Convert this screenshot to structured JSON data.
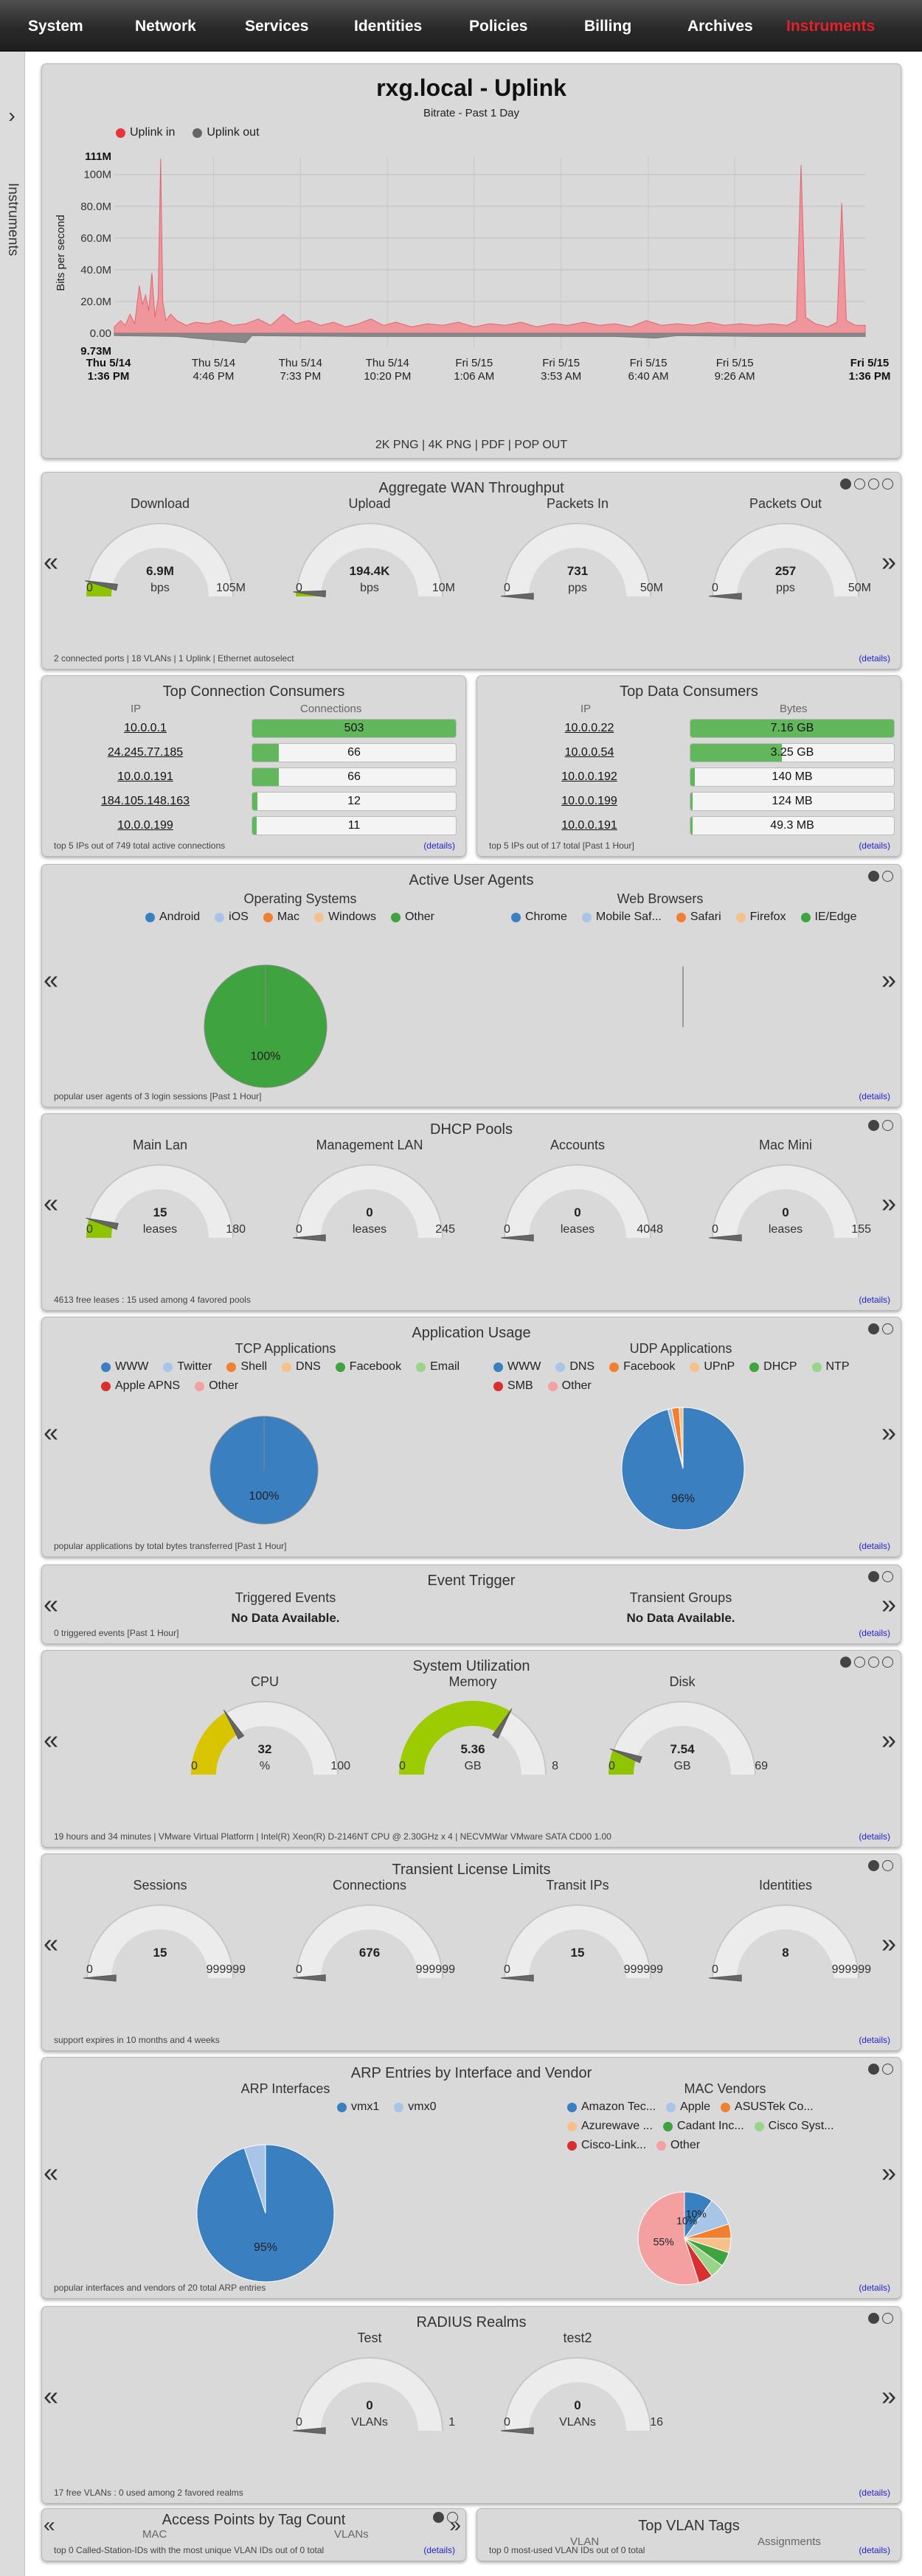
{
  "nav": {
    "items": [
      "System",
      "Network",
      "Services",
      "Identities",
      "Policies",
      "Billing",
      "Archives",
      "Instruments"
    ],
    "active": "Instruments"
  },
  "sidebar": {
    "label": "Instruments",
    "toggle": "›"
  },
  "uplink": {
    "title": "rxg.local - Uplink",
    "subtitle": "Bitrate - Past 1 Day",
    "legend": [
      {
        "name": "Uplink in",
        "color": "#e8343e"
      },
      {
        "name": "Uplink out",
        "color": "#666666"
      }
    ],
    "export": "2K PNG | 4K PNG | PDF | POP OUT",
    "chart_data": {
      "type": "area",
      "ylabel": "Bits per second",
      "max_label": "111M",
      "min_label": "9.73M",
      "yticks": [
        "100M",
        "80.0M",
        "60.0M",
        "40.0M",
        "20.0M",
        "0.00"
      ],
      "ytick_values": [
        100,
        80,
        60,
        40,
        20,
        0
      ],
      "ylim": [
        -9.73,
        111
      ],
      "unit": "M",
      "x_start_label": [
        "Thu 5/14",
        "1:36 PM"
      ],
      "x_end_label": [
        "Fri 5/15",
        "1:36 PM"
      ],
      "xticks": [
        [
          "Thu 5/14",
          "4:46 PM"
        ],
        [
          "Thu 5/14",
          "7:33 PM"
        ],
        [
          "Thu 5/14",
          "10:20 PM"
        ],
        [
          "Fri 5/15",
          "1:06 AM"
        ],
        [
          "Fri 5/15",
          "3:53 AM"
        ],
        [
          "Fri 5/15",
          "6:40 AM"
        ],
        [
          "Fri 5/15",
          "9:26 AM"
        ]
      ],
      "xtick_hours": [
        3.17,
        5.95,
        8.73,
        11.5,
        14.28,
        17.07,
        19.83
      ],
      "span_hours": 24,
      "series": [
        {
          "name": "Uplink in",
          "color": "#f0959b",
          "points": [
            [
              0,
              4
            ],
            [
              0.2,
              8
            ],
            [
              0.35,
              5
            ],
            [
              0.5,
              12
            ],
            [
              0.65,
              6
            ],
            [
              0.8,
              30
            ],
            [
              0.9,
              18
            ],
            [
              1.0,
              24
            ],
            [
              1.1,
              14
            ],
            [
              1.2,
              38
            ],
            [
              1.3,
              10
            ],
            [
              1.4,
              22
            ],
            [
              1.48,
              110
            ],
            [
              1.55,
              20
            ],
            [
              1.65,
              8
            ],
            [
              1.8,
              12
            ],
            [
              2,
              8
            ],
            [
              2.3,
              5
            ],
            [
              2.6,
              7
            ],
            [
              3,
              6
            ],
            [
              3.4,
              8
            ],
            [
              3.8,
              5
            ],
            [
              4.2,
              6
            ],
            [
              4.6,
              9
            ],
            [
              5,
              5
            ],
            [
              5.4,
              12
            ],
            [
              5.8,
              6
            ],
            [
              6.2,
              8
            ],
            [
              6.6,
              5
            ],
            [
              7,
              7
            ],
            [
              7.4,
              4
            ],
            [
              7.8,
              6
            ],
            [
              8.2,
              9
            ],
            [
              8.6,
              5
            ],
            [
              9,
              7
            ],
            [
              9.5,
              4
            ],
            [
              10,
              6
            ],
            [
              10.5,
              5
            ],
            [
              11,
              7
            ],
            [
              11.5,
              4
            ],
            [
              12,
              6
            ],
            [
              12.5,
              5
            ],
            [
              13,
              7
            ],
            [
              13.5,
              4
            ],
            [
              14,
              6
            ],
            [
              14.5,
              5
            ],
            [
              15,
              7
            ],
            [
              15.5,
              5
            ],
            [
              16,
              6
            ],
            [
              16.5,
              4
            ],
            [
              17,
              8
            ],
            [
              17.5,
              5
            ],
            [
              18,
              6
            ],
            [
              18.5,
              5
            ],
            [
              19,
              7
            ],
            [
              19.5,
              5
            ],
            [
              20,
              6
            ],
            [
              20.5,
              5
            ],
            [
              21,
              6
            ],
            [
              21.5,
              5
            ],
            [
              21.8,
              8
            ],
            [
              21.95,
              106
            ],
            [
              22.1,
              10
            ],
            [
              22.4,
              6
            ],
            [
              22.8,
              4
            ],
            [
              23.1,
              7
            ],
            [
              23.25,
              82
            ],
            [
              23.4,
              8
            ],
            [
              23.7,
              5
            ],
            [
              24,
              5
            ]
          ]
        },
        {
          "name": "Uplink out",
          "color": "#888888",
          "points": [
            [
              0,
              -1.5
            ],
            [
              2,
              -2
            ],
            [
              4.2,
              -6
            ],
            [
              4.4,
              -1.5
            ],
            [
              8,
              -2
            ],
            [
              12,
              -2
            ],
            [
              16,
              -2
            ],
            [
              17.3,
              -3
            ],
            [
              18,
              -1.5
            ],
            [
              20.6,
              -2
            ],
            [
              21,
              -2
            ],
            [
              22,
              -2
            ],
            [
              24,
              -2
            ]
          ]
        }
      ]
    }
  },
  "wan": {
    "title": "Aggregate WAN Throughput",
    "gauges": [
      {
        "label": "Download",
        "value": "6.9M",
        "unit": "bps",
        "min": "0",
        "max": "105M",
        "fraction": 0.066,
        "color": "#8fc400"
      },
      {
        "label": "Upload",
        "value": "194.4K",
        "unit": "bps",
        "min": "0",
        "max": "10M",
        "fraction": 0.019,
        "color": "#8fc400"
      },
      {
        "label": "Packets In",
        "value": "731",
        "unit": "pps",
        "min": "0",
        "max": "50M",
        "fraction": 0.001,
        "color": "#8fc400"
      },
      {
        "label": "Packets Out",
        "value": "257",
        "unit": "pps",
        "min": "0",
        "max": "50M",
        "fraction": 0.001,
        "color": "#8fc400"
      }
    ],
    "footer": "2 connected ports | 18 VLANs | 1 Uplink | Ethernet autoselect",
    "details": "(details)"
  },
  "conn": {
    "title": "Top Connection Consumers",
    "headers": [
      "IP",
      "Connections"
    ],
    "rows": [
      {
        "ip": "10.0.0.1",
        "value": "503",
        "fraction": 1.0
      },
      {
        "ip": "24.245.77.185",
        "value": "66",
        "fraction": 0.13
      },
      {
        "ip": "10.0.0.191",
        "value": "66",
        "fraction": 0.13
      },
      {
        "ip": "184.105.148.163",
        "value": "12",
        "fraction": 0.024
      },
      {
        "ip": "10.0.0.199",
        "value": "11",
        "fraction": 0.022
      }
    ],
    "footer": "top 5 IPs out of 749 total active connections",
    "details": "(details)"
  },
  "data": {
    "title": "Top Data Consumers",
    "headers": [
      "IP",
      "Bytes"
    ],
    "rows": [
      {
        "ip": "10.0.0.22",
        "value": "7.16 GB",
        "fraction": 1.0
      },
      {
        "ip": "10.0.0.54",
        "value": "3.25 GB",
        "fraction": 0.45
      },
      {
        "ip": "10.0.0.192",
        "value": "140 MB",
        "fraction": 0.02
      },
      {
        "ip": "10.0.0.199",
        "value": "124 MB",
        "fraction": 0.017
      },
      {
        "ip": "10.0.0.191",
        "value": "49.3 MB",
        "fraction": 0.007
      }
    ],
    "footer": "top 5 IPs out of 17 total [Past 1 Hour]",
    "details": "(details)"
  },
  "agents": {
    "title": "Active User Agents",
    "os": {
      "title": "Operating Systems",
      "legend": [
        {
          "name": "Android",
          "color": "#3a7fc0"
        },
        {
          "name": "iOS",
          "color": "#a8c4e6"
        },
        {
          "name": "Mac",
          "color": "#f08030"
        },
        {
          "name": "Windows",
          "color": "#f7c089"
        },
        {
          "name": "Other",
          "color": "#3fa33f"
        }
      ],
      "pie_values": [
        0,
        0,
        0,
        0,
        100
      ],
      "pie_label": "100%"
    },
    "browsers": {
      "title": "Web Browsers",
      "legend": [
        {
          "name": "Chrome",
          "color": "#3a7fc0"
        },
        {
          "name": "Mobile Saf...",
          "color": "#a8c4e6"
        },
        {
          "name": "Safari",
          "color": "#f08030"
        },
        {
          "name": "Firefox",
          "color": "#f7c089"
        },
        {
          "name": "IE/Edge",
          "color": "#3fa33f"
        }
      ]
    },
    "footer": "popular user agents of 3 login sessions [Past 1 Hour]",
    "details": "(details)"
  },
  "dhcp": {
    "title": "DHCP Pools",
    "gauges": [
      {
        "label": "Main Lan",
        "value": "15",
        "unit": "leases",
        "min": "0",
        "max": "180",
        "fraction": 0.083,
        "color": "#8fc400"
      },
      {
        "label": "Management LAN",
        "value": "0",
        "unit": "leases",
        "min": "0",
        "max": "245",
        "fraction": 0,
        "color": "#8fc400"
      },
      {
        "label": "Accounts",
        "value": "0",
        "unit": "leases",
        "min": "0",
        "max": "4048",
        "fraction": 0,
        "color": "#8fc400"
      },
      {
        "label": "Mac Mini",
        "value": "0",
        "unit": "leases",
        "min": "0",
        "max": "155",
        "fraction": 0,
        "color": "#8fc400"
      }
    ],
    "footer": "4613 free leases : 15 used among 4 favored pools",
    "details": "(details)"
  },
  "apps": {
    "title": "Application Usage",
    "tcp": {
      "title": "TCP Applications",
      "legend": [
        {
          "name": "WWW",
          "color": "#3a7fc0"
        },
        {
          "name": "Twitter",
          "color": "#a8c4e6"
        },
        {
          "name": "Shell",
          "color": "#f08030"
        },
        {
          "name": "DNS",
          "color": "#f7c089"
        },
        {
          "name": "Facebook",
          "color": "#3fa33f"
        },
        {
          "name": "Email",
          "color": "#9ad38a"
        },
        {
          "name": "Apple APNS",
          "color": "#d83030"
        },
        {
          "name": "Other",
          "color": "#f5a0a0"
        }
      ],
      "pie_values": [
        100,
        0,
        0,
        0,
        0,
        0,
        0,
        0
      ],
      "pie_label": "100%"
    },
    "udp": {
      "title": "UDP Applications",
      "legend": [
        {
          "name": "WWW",
          "color": "#3a7fc0"
        },
        {
          "name": "DNS",
          "color": "#a8c4e6"
        },
        {
          "name": "Facebook",
          "color": "#f08030"
        },
        {
          "name": "UPnP",
          "color": "#f7c089"
        },
        {
          "name": "DHCP",
          "color": "#3fa33f"
        },
        {
          "name": "NTP",
          "color": "#9ad38a"
        },
        {
          "name": "SMB",
          "color": "#d83030"
        },
        {
          "name": "Other",
          "color": "#f5a0a0"
        }
      ],
      "pie_values": [
        96,
        1,
        2,
        1,
        0,
        0,
        0,
        0
      ],
      "pie_label": "96%"
    },
    "footer": "popular applications by total bytes transferred [Past 1 Hour]",
    "details": "(details)"
  },
  "event": {
    "title": "Event Trigger",
    "triggered": {
      "title": "Triggered Events",
      "text": "No Data Available."
    },
    "transient": {
      "title": "Transient Groups",
      "text": "No Data Available."
    },
    "footer": "0 triggered events [Past 1 Hour]",
    "details": "(details)"
  },
  "sysutil": {
    "title": "System Utilization",
    "gauges": [
      {
        "label": "CPU",
        "value": "32",
        "unit": "%",
        "min": "0",
        "max": "100",
        "fraction": 0.32,
        "color": "#d8c400"
      },
      {
        "label": "Memory",
        "value": "5.36",
        "unit": "GB",
        "min": "0",
        "max": "8",
        "fraction": 0.67,
        "color": "#9ccc00"
      },
      {
        "label": "Disk",
        "value": "7.54",
        "unit": "GB",
        "min": "0",
        "max": "69",
        "fraction": 0.109,
        "color": "#8fc400"
      }
    ],
    "footer": "19 hours and 34 minutes | VMware Virtual Platform | Intel(R) Xeon(R) D-2146NT CPU @ 2.30GHz x 4 | NECVMWar VMware SATA CD00 1.00",
    "details": "(details)"
  },
  "license": {
    "title": "Transient License Limits",
    "gauges": [
      {
        "label": "Sessions",
        "value": "15",
        "unit": "",
        "min": "0",
        "max": "999999",
        "fraction": 0.0,
        "color": "#8fc400"
      },
      {
        "label": "Connections",
        "value": "676",
        "unit": "",
        "min": "0",
        "max": "999999",
        "fraction": 0.001,
        "color": "#8fc400"
      },
      {
        "label": "Transit IPs",
        "value": "15",
        "unit": "",
        "min": "0",
        "max": "999999",
        "fraction": 0.0,
        "color": "#8fc400"
      },
      {
        "label": "Identities",
        "value": "8",
        "unit": "",
        "min": "0",
        "max": "999999",
        "fraction": 0.0,
        "color": "#8fc400"
      }
    ],
    "footer": "support expires in 10 months and 4 weeks",
    "details": "(details)"
  },
  "arp": {
    "title": "ARP Entries by Interface and Vendor",
    "ifaces": {
      "title": "ARP Interfaces",
      "legend": [
        {
          "name": "vmx1",
          "color": "#3a7fc0"
        },
        {
          "name": "vmx0",
          "color": "#a8c4e6"
        }
      ],
      "pie_values": [
        95,
        5
      ],
      "pie_label": "95%"
    },
    "vendors": {
      "title": "MAC Vendors",
      "legend": [
        {
          "name": "Amazon Tec...",
          "color": "#3a7fc0"
        },
        {
          "name": "Apple",
          "color": "#a8c4e6"
        },
        {
          "name": "ASUSTek Co...",
          "color": "#f08030"
        },
        {
          "name": "Azurewave ...",
          "color": "#f7c089"
        },
        {
          "name": "Cadant Inc...",
          "color": "#3fa33f"
        },
        {
          "name": "Cisco Syst...",
          "color": "#9ad38a"
        },
        {
          "name": "Cisco-Link...",
          "color": "#d83030"
        },
        {
          "name": "Other",
          "color": "#f5a0a0"
        }
      ],
      "pie_values": [
        10,
        10,
        5,
        5,
        5,
        5,
        5,
        55
      ],
      "pie_labels": [
        "10%",
        "10%",
        "55%"
      ]
    },
    "footer": "popular interfaces and vendors of 20 total ARP entries",
    "details": "(details)"
  },
  "radius": {
    "title": "RADIUS Realms",
    "gauges": [
      {
        "label": "Test",
        "value": "0",
        "unit": "VLANs",
        "min": "0",
        "max": "1",
        "fraction": 0,
        "color": "#8fc400"
      },
      {
        "label": "test2",
        "value": "0",
        "unit": "VLANs",
        "min": "0",
        "max": "16",
        "fraction": 0,
        "color": "#8fc400"
      }
    ],
    "footer": "17 free VLANs : 0 used among 2 favored realms",
    "details": "(details)"
  },
  "ap": {
    "title": "Access Points by Tag Count",
    "headers": [
      "MAC",
      "VLANs"
    ],
    "footer": "top 0 Called-Station-IDs with the most unique VLAN IDs out of 0 total",
    "details": "(details)"
  },
  "vlan": {
    "title": "Top VLAN Tags",
    "headers": [
      "VLAN",
      "Assignments"
    ],
    "footer": "top 0 most-used VLAN IDs out of 0 total",
    "details": "(details)"
  }
}
